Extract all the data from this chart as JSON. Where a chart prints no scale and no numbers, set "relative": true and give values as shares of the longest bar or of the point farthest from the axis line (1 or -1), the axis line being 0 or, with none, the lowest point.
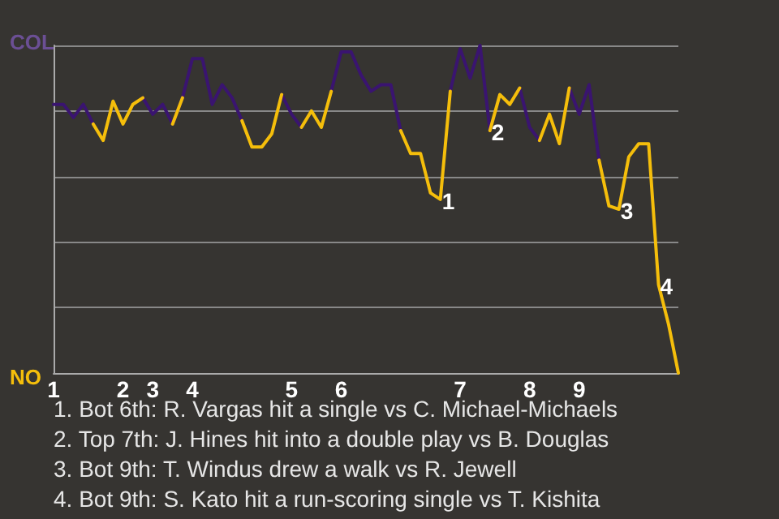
{
  "chart_data": {
    "type": "line",
    "relative": true,
    "categories": [
      "1",
      null,
      null,
      null,
      null,
      null,
      null,
      "2",
      null,
      null,
      "3",
      null,
      null,
      null,
      "4",
      null,
      null,
      null,
      null,
      null,
      null,
      null,
      null,
      null,
      "5",
      null,
      null,
      null,
      null,
      "6",
      null,
      null,
      null,
      null,
      null,
      null,
      null,
      null,
      null,
      null,
      null,
      "7",
      null,
      null,
      null,
      null,
      null,
      null,
      "8",
      null,
      null,
      null,
      null,
      "9",
      null,
      null,
      null,
      null,
      null,
      null,
      null,
      null,
      null,
      null
    ],
    "series": [
      {
        "name": "COL",
        "color": "#3a1470",
        "values": [
          0.82,
          0.82,
          0.78,
          0.82,
          0.76,
          null,
          null,
          null,
          null,
          0.84,
          0.79,
          0.82,
          0.76,
          0.84,
          0.96,
          0.96,
          0.82,
          0.88,
          0.84,
          0.77,
          null,
          null,
          null,
          0.85,
          0.79,
          0.75,
          null,
          null,
          0.86,
          0.98,
          0.98,
          0.91,
          0.86,
          0.88,
          0.88,
          0.74,
          null,
          null,
          null,
          null,
          0.86,
          0.99,
          0.9,
          1,
          0.74,
          null,
          null,
          0.87,
          0.75,
          0.71,
          null,
          null,
          0.87,
          0.79,
          0.88,
          0.65,
          null,
          null,
          null,
          null,
          null,
          null,
          null,
          null
        ]
      },
      {
        "name": "NO",
        "color": "#f5be0b",
        "values": [
          null,
          null,
          null,
          null,
          0.76,
          0.71,
          0.83,
          0.76,
          0.82,
          0.84,
          null,
          null,
          0.76,
          0.84,
          null,
          null,
          null,
          null,
          null,
          0.77,
          0.69,
          0.69,
          0.73,
          0.85,
          null,
          0.75,
          0.8,
          0.75,
          0.86,
          null,
          null,
          null,
          null,
          null,
          null,
          0.74,
          0.67,
          0.67,
          0.55,
          0.53,
          0.86,
          null,
          null,
          null,
          0.74,
          0.85,
          0.82,
          0.87,
          null,
          0.71,
          0.79,
          0.7,
          0.87,
          null,
          null,
          0.65,
          0.51,
          0.5,
          0.66,
          0.7,
          0.7,
          0.27,
          0.15,
          0
        ]
      }
    ],
    "grid": "y",
    "marker": "none",
    "line_style": "solid",
    "legend": "left",
    "annotations": [
      {
        "text": "1",
        "y": 0.53
      },
      {
        "text": "2",
        "y": 0.74
      },
      {
        "text": "3",
        "y": 0.5
      },
      {
        "text": "4",
        "y": 0.27
      },
      "1. Bot 6th: R. Vargas hit a single vs C. Michael-Michaels",
      "2. Top 7th: J. Hines hit into a double play vs B. Douglas",
      "3. Bot 9th: T. Windus drew a walk vs R. Jewell",
      "4. Bot 9th: S. Kato hit a run-scoring single vs T. Kishita"
    ]
  }
}
